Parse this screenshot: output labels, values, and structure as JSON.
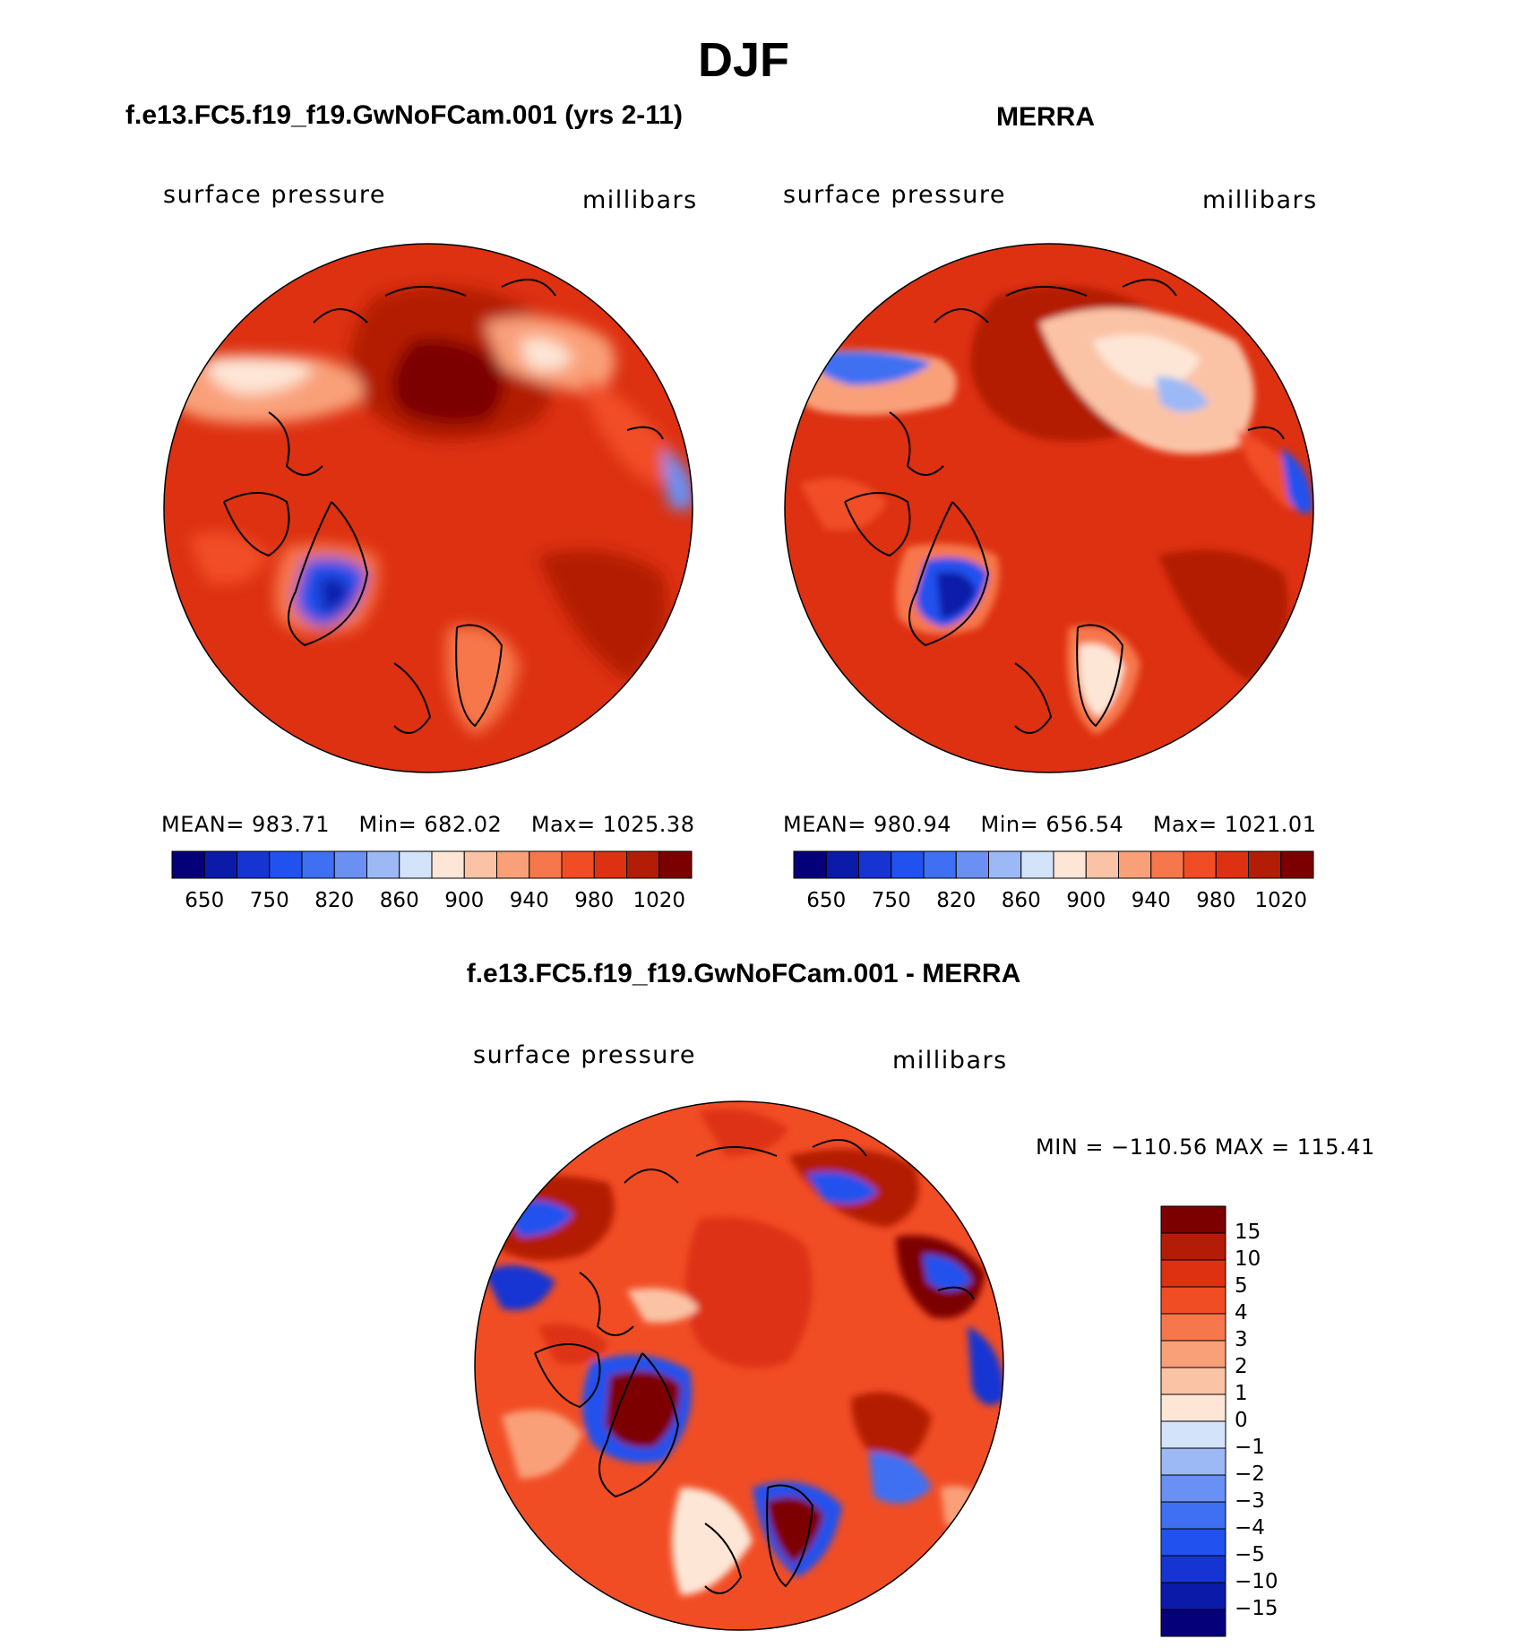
{
  "figure": {
    "title": "DJF"
  },
  "panels": [
    {
      "title": "f.e13.FC5.f19_f19.GwNoFCam.001 (yrs 2-11)",
      "variable_label": "surface pressure",
      "units_label": "millibars",
      "stats": {
        "mean_label": "MEAN=",
        "mean": "983.71",
        "min_label": "Min=",
        "min": "682.02",
        "max_label": "Max=",
        "max": "1025.38"
      }
    },
    {
      "title": "MERRA",
      "variable_label": "surface pressure",
      "units_label": "millibars",
      "stats": {
        "mean_label": "MEAN=",
        "mean": "980.94",
        "min_label": "Min=",
        "min": "656.54",
        "max_label": "Max=",
        "max": "1021.01"
      }
    },
    {
      "title": "f.e13.FC5.f19_f19.GwNoFCam.001 - MERRA",
      "variable_label": "surface pressure",
      "units_label": "millibars",
      "stats": {
        "minmax_text": "MIN = −110.56 MAX = 115.41"
      }
    }
  ],
  "chart_data": {
    "type": "heatmap",
    "projection": "north polar stereographic",
    "main_colorbar": {
      "orientation": "horizontal",
      "levels": [
        "650",
        "700",
        "750",
        "800",
        "820",
        "840",
        "860",
        "880",
        "900",
        "920",
        "940",
        "960",
        "980",
        "1000",
        "1020"
      ],
      "labeled_levels": [
        "650",
        "750",
        "820",
        "860",
        "900",
        "940",
        "980",
        "1020"
      ],
      "colors": [
        "#05007a",
        "#0b1aa9",
        "#1634d2",
        "#2151ee",
        "#3f6ff2",
        "#6a90f4",
        "#9cb9f6",
        "#d3e4fa",
        "#fde6d6",
        "#fbc3a6",
        "#f9a079",
        "#f7774c",
        "#f14d25",
        "#dd3112",
        "#b31c06",
        "#7d0000"
      ]
    },
    "diff_colorbar": {
      "orientation": "vertical",
      "levels": [
        "15",
        "10",
        "5",
        "4",
        "3",
        "2",
        "1",
        "0",
        "−1",
        "−2",
        "−3",
        "−4",
        "−5",
        "−10",
        "−15"
      ],
      "colors": [
        "#7d0000",
        "#b31c06",
        "#dd3112",
        "#f14d25",
        "#f7774c",
        "#f9a079",
        "#fbc3a6",
        "#fde6d6",
        "#d3e4fa",
        "#9cb9f6",
        "#6a90f4",
        "#3f6ff2",
        "#2151ee",
        "#1634d2",
        "#0b1aa9",
        "#05007a"
      ]
    }
  }
}
